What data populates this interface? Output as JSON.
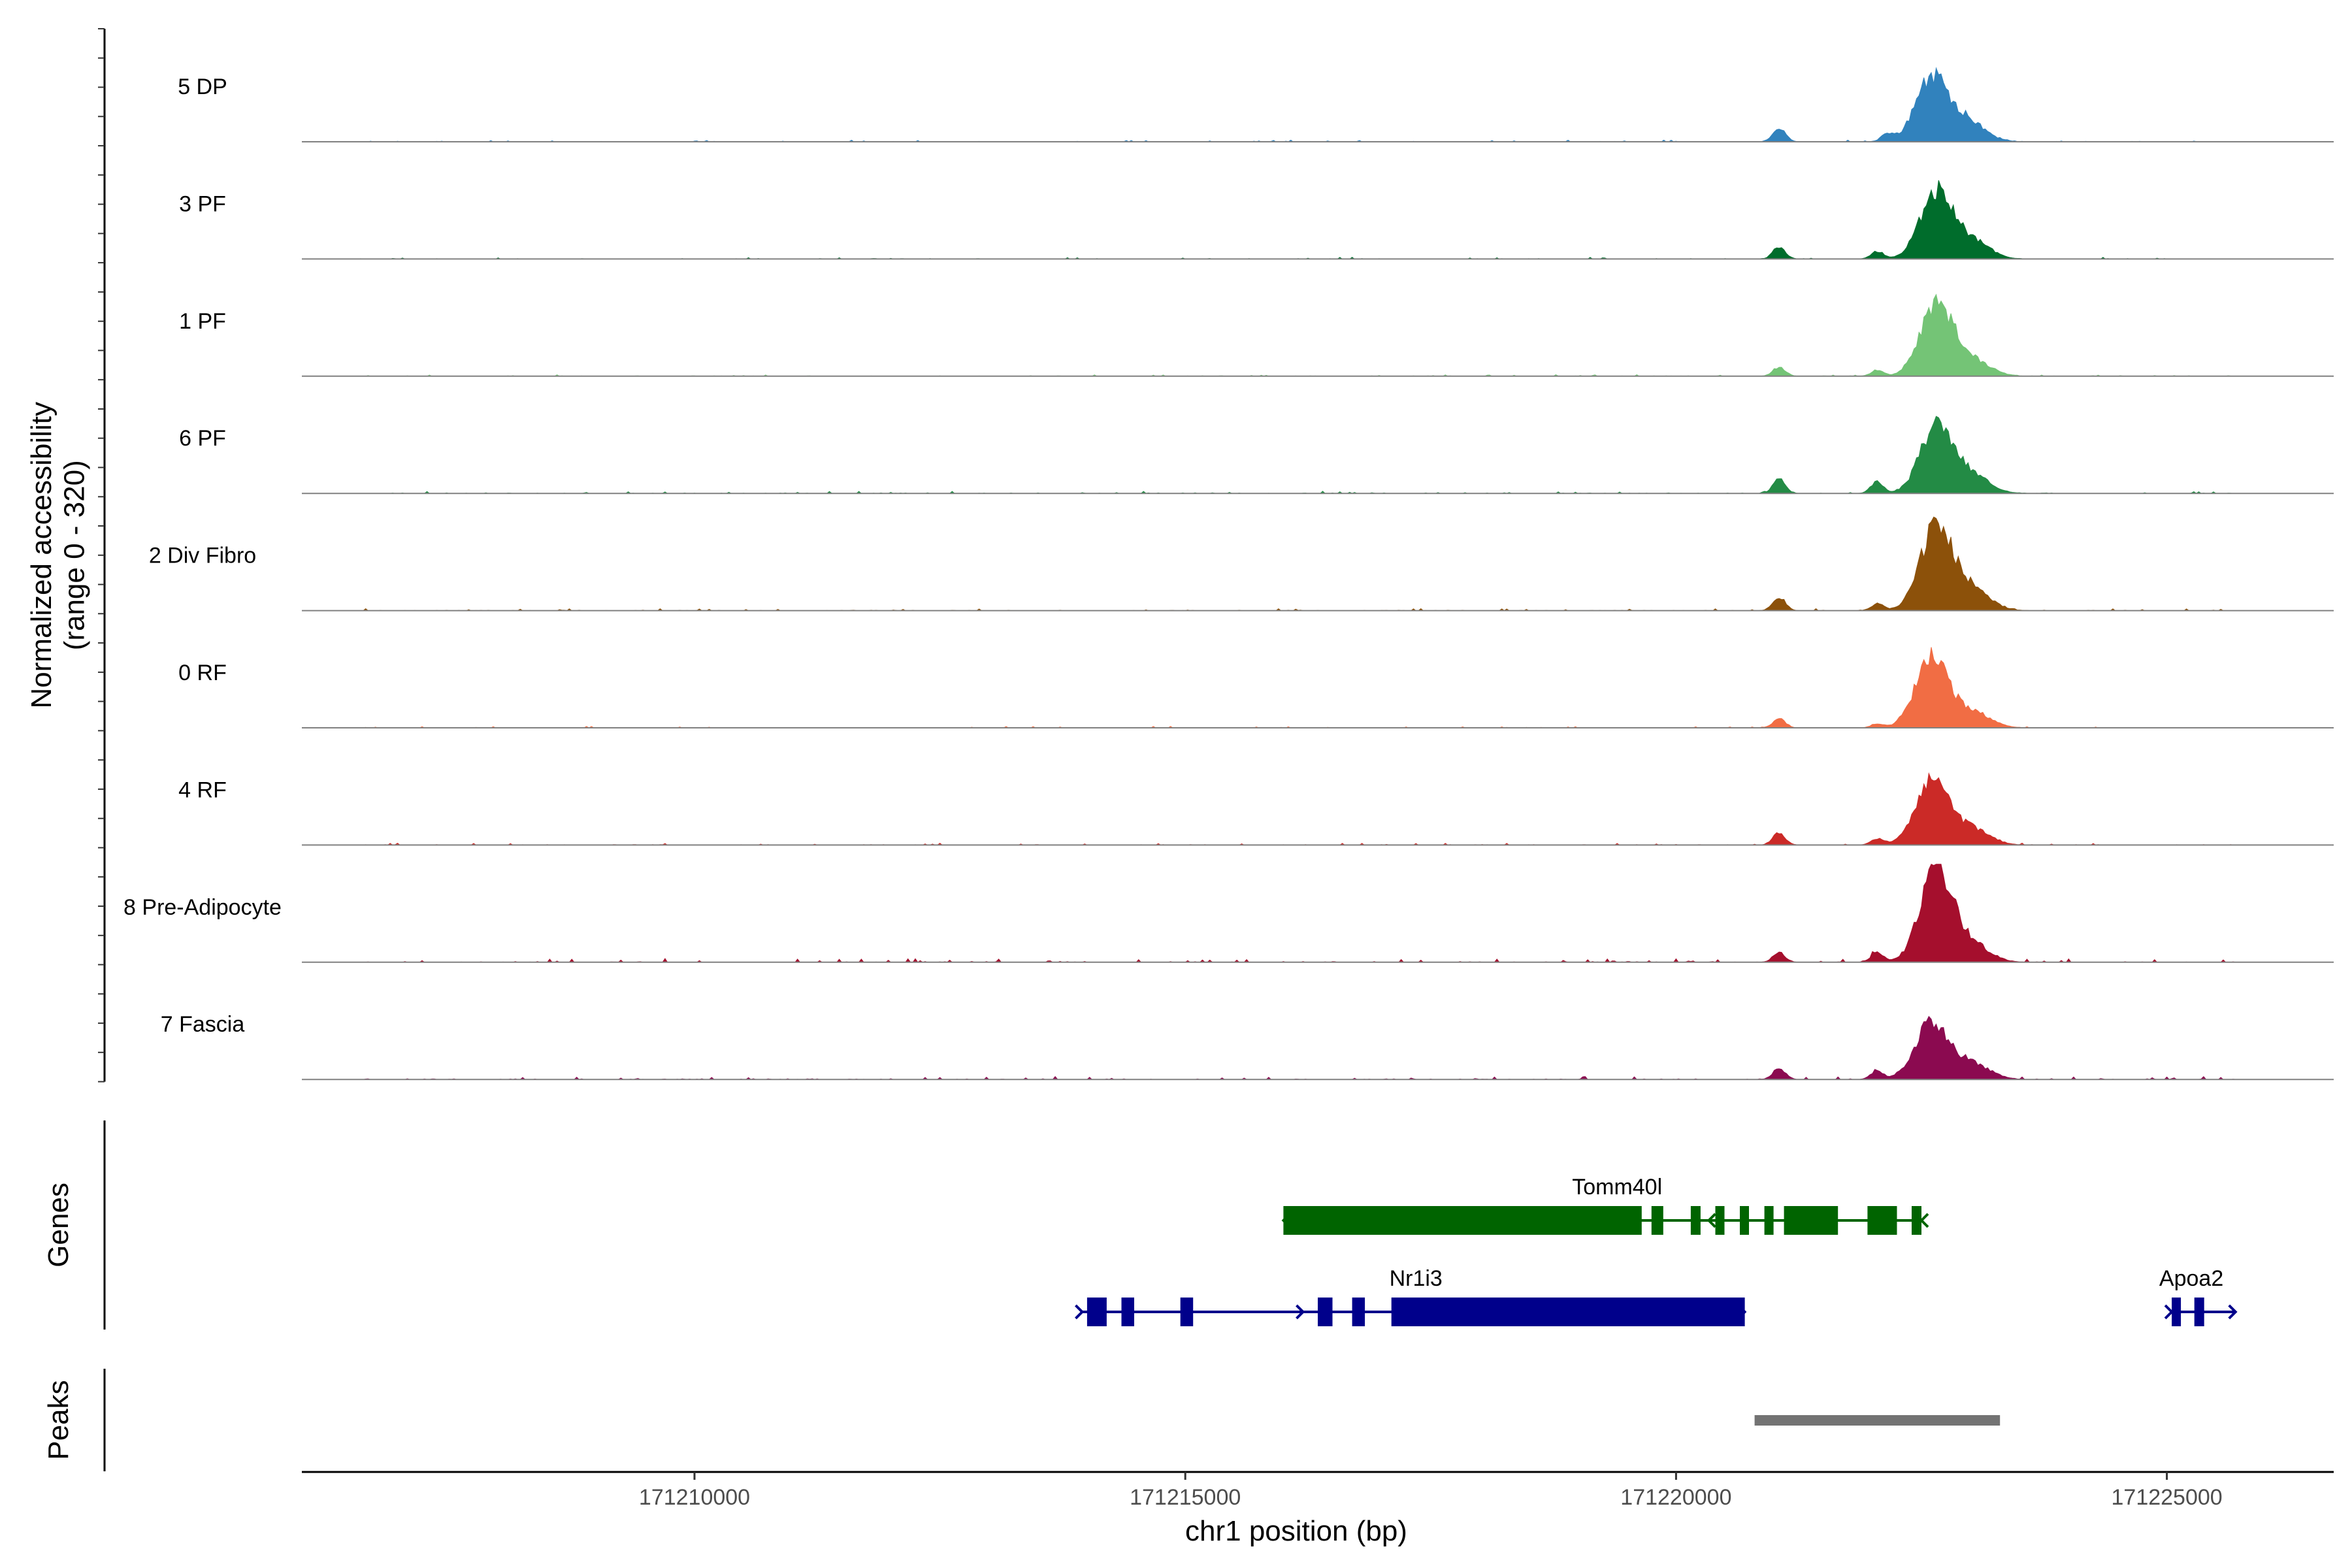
{
  "chart_data": {
    "type": "area",
    "ylabel": "Normalized accessibility\n(range 0 - 320)",
    "xlabel": "chr1 position (bp)",
    "ylim": [
      0,
      320
    ],
    "xlim": [
      171206000,
      171226700
    ],
    "x_ticks": [
      "171210000",
      "171215000",
      "171220000",
      "171225000"
    ],
    "tracks": [
      {
        "label": "5 DP",
        "color": "#3182bd",
        "peaks": [
          [
            171222600,
            200
          ],
          [
            171222150,
            22
          ],
          [
            171221050,
            45
          ],
          [
            171222950,
            70
          ]
        ],
        "noise": 0.9
      },
      {
        "label": "3 PF",
        "color": "#006d2c",
        "peaks": [
          [
            171222650,
            215
          ],
          [
            171222050,
            25
          ],
          [
            171221050,
            40
          ],
          [
            171223000,
            60
          ]
        ],
        "noise": 0.9
      },
      {
        "label": "1 PF",
        "color": "#74c476",
        "peaks": [
          [
            171222650,
            235
          ],
          [
            171222050,
            20
          ],
          [
            171221050,
            30
          ],
          [
            171223000,
            55
          ]
        ],
        "noise": 0.8
      },
      {
        "label": "6 PF",
        "color": "#238b45",
        "peaks": [
          [
            171222650,
            215
          ],
          [
            171222050,
            38
          ],
          [
            171221050,
            45
          ],
          [
            171223000,
            60
          ]
        ],
        "noise": 1.2
      },
      {
        "label": "2 Div Fibro",
        "color": "#8c510a",
        "peaks": [
          [
            171222650,
            270
          ],
          [
            171222050,
            22
          ],
          [
            171221050,
            45
          ],
          [
            171223000,
            70
          ]
        ],
        "noise": 1.1
      },
      {
        "label": "0 RF",
        "color": "#f16d44",
        "peaks": [
          [
            171222600,
            225
          ],
          [
            171222050,
            12
          ],
          [
            171221050,
            30
          ],
          [
            171223000,
            55
          ]
        ],
        "noise": 0.8
      },
      {
        "label": "4 RF",
        "color": "#cb2a27",
        "peaks": [
          [
            171222600,
            215
          ],
          [
            171222050,
            20
          ],
          [
            171221050,
            38
          ],
          [
            171223000,
            55
          ]
        ],
        "noise": 1.0
      },
      {
        "label": "8 Pre-Adipocyte",
        "color": "#a50f2d",
        "peaks": [
          [
            171222650,
            300
          ],
          [
            171222050,
            32
          ],
          [
            171221050,
            30
          ],
          [
            171223000,
            60
          ]
        ],
        "noise": 2.0
      },
      {
        "label": "7 Fascia",
        "color": "#8b0a50",
        "peaks": [
          [
            171222600,
            185
          ],
          [
            171222050,
            28
          ],
          [
            171221050,
            38
          ],
          [
            171223000,
            55
          ]
        ],
        "noise": 1.6
      }
    ],
    "genes": [
      {
        "name": "Tomm40l",
        "strand": "-",
        "color": "#006400",
        "row": 0,
        "start": 171216000,
        "end": 171222500,
        "exons": [
          [
            171216000,
            171219650
          ],
          [
            171219750,
            171219870
          ],
          [
            171220150,
            171220250
          ],
          [
            171220400,
            171220480
          ],
          [
            171220650,
            171220730
          ],
          [
            171220900,
            171220980
          ],
          [
            171221100,
            171221650
          ],
          [
            171221950,
            171222250
          ],
          [
            171222400,
            171222500
          ]
        ]
      },
      {
        "name": "Nr1i3",
        "strand": "+",
        "color": "#00008b",
        "row": 1,
        "start": 171213950,
        "end": 171220700,
        "exons": [
          [
            171214000,
            171214200
          ],
          [
            171214350,
            171214480
          ],
          [
            171214950,
            171215080
          ],
          [
            171216350,
            171216500
          ],
          [
            171216700,
            171216830
          ],
          [
            171217100,
            171220700
          ]
        ]
      },
      {
        "name": "Apoa2",
        "strand": "+",
        "color": "#00008b",
        "row": 1,
        "start": 171225050,
        "end": 171225700,
        "exons": [
          [
            171225050,
            171225110
          ],
          [
            171225280,
            171225380
          ]
        ]
      }
    ],
    "peaks_track_label": "Peaks",
    "genes_track_label": "Genes",
    "peak_regions": [
      {
        "start": 171220800,
        "end": 171223300,
        "color": "#737373"
      }
    ]
  }
}
